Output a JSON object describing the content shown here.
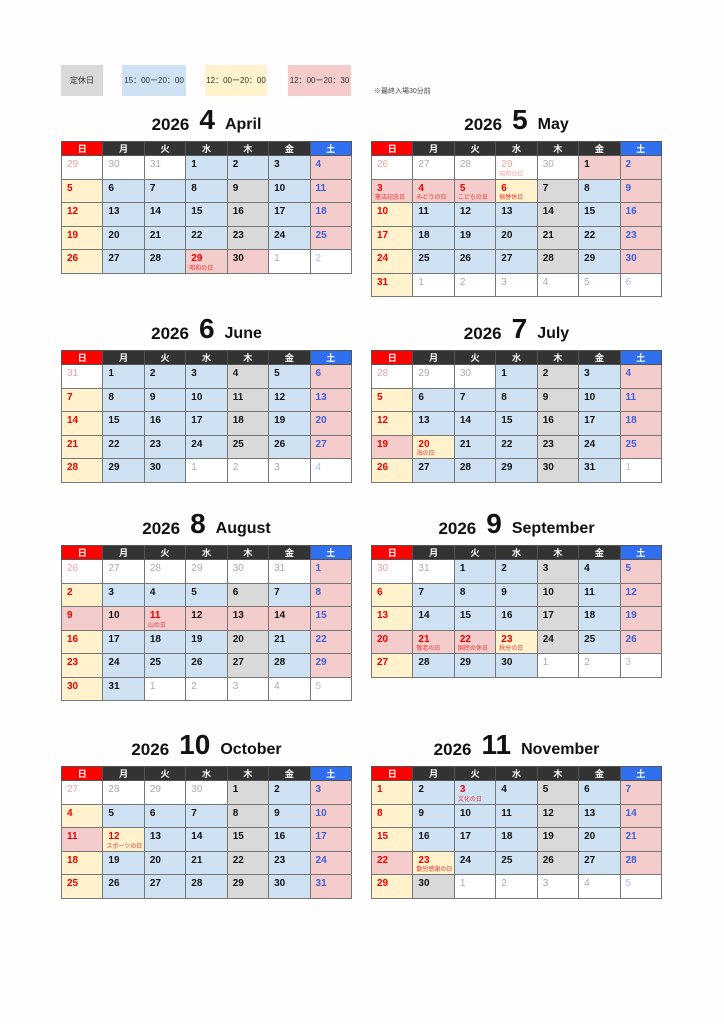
{
  "legend": [
    {
      "label": "定休日",
      "color": "#d9d9d9"
    },
    {
      "label": "15：00ー20：00",
      "color": "#cfe2f3"
    },
    {
      "label": "12：00ー20：00",
      "color": "#fff2cc"
    },
    {
      "label": "12：00ー20：30",
      "color": "#f4cccc"
    }
  ],
  "note": "※最終入場30分前",
  "schedule_codes": {
    "K": "定休日",
    "B": "15：00ー20：00",
    "Y": "12：00ー20：00",
    "P": "12：00ー20：30",
    "W": "other month"
  },
  "weekdays": [
    "日",
    "月",
    "火",
    "水",
    "木",
    "金",
    "土"
  ],
  "months": [
    {
      "year": "2026",
      "num": "4",
      "name": "April",
      "weeks": [
        {
          "days": [
            29,
            30,
            31,
            1,
            2,
            3,
            4
          ],
          "sched": "WWWBBBP"
        },
        {
          "days": [
            5,
            6,
            7,
            8,
            9,
            10,
            11
          ],
          "sched": "YBBBKBP"
        },
        {
          "days": [
            12,
            13,
            14,
            15,
            16,
            17,
            18
          ],
          "sched": "YBBBKBP"
        },
        {
          "days": [
            19,
            20,
            21,
            22,
            23,
            24,
            25
          ],
          "sched": "YBBBKBP"
        },
        {
          "days": [
            26,
            27,
            28,
            29,
            30,
            1,
            2
          ],
          "sched": "YBBPPWW",
          "holidays": {
            "3": "昭和の日"
          }
        }
      ]
    },
    {
      "year": "2026",
      "num": "5",
      "name": "May",
      "weeks": [
        {
          "days": [
            26,
            27,
            28,
            29,
            30,
            1,
            2
          ],
          "sched": "WWWWWPP",
          "holidays": {
            "3": "昭和の日"
          }
        },
        {
          "days": [
            3,
            4,
            5,
            6,
            7,
            8,
            9
          ],
          "sched": "PPPYKBP",
          "holidays": {
            "0": "憲法記念日",
            "1": "みどりの日",
            "2": "こどもの日",
            "3": "振替休日"
          }
        },
        {
          "days": [
            10,
            11,
            12,
            13,
            14,
            15,
            16
          ],
          "sched": "YBBBKBP"
        },
        {
          "days": [
            17,
            18,
            19,
            20,
            21,
            22,
            23
          ],
          "sched": "YBBBKBP"
        },
        {
          "days": [
            24,
            25,
            26,
            27,
            28,
            29,
            30
          ],
          "sched": "YBBBKBP"
        },
        {
          "days": [
            31,
            1,
            2,
            3,
            4,
            5,
            6
          ],
          "sched": "YWWWWWW"
        }
      ]
    },
    {
      "year": "2026",
      "num": "6",
      "name": "June",
      "weeks": [
        {
          "days": [
            31,
            1,
            2,
            3,
            4,
            5,
            6
          ],
          "sched": "WBBBKBP"
        },
        {
          "days": [
            7,
            8,
            9,
            10,
            11,
            12,
            13
          ],
          "sched": "YBBBKBP"
        },
        {
          "days": [
            14,
            15,
            16,
            17,
            18,
            19,
            20
          ],
          "sched": "YBBBKBP"
        },
        {
          "days": [
            21,
            22,
            23,
            24,
            25,
            26,
            27
          ],
          "sched": "YBBBKBP"
        },
        {
          "days": [
            28,
            29,
            30,
            1,
            2,
            3,
            4
          ],
          "sched": "YBBWWWW"
        }
      ]
    },
    {
      "year": "2026",
      "num": "7",
      "name": "July",
      "weeks": [
        {
          "days": [
            28,
            29,
            30,
            1,
            2,
            3,
            4
          ],
          "sched": "WWWBKBP"
        },
        {
          "days": [
            5,
            6,
            7,
            8,
            9,
            10,
            11
          ],
          "sched": "YBBBKBP"
        },
        {
          "days": [
            12,
            13,
            14,
            15,
            16,
            17,
            18
          ],
          "sched": "YBBBKBP"
        },
        {
          "days": [
            19,
            20,
            21,
            22,
            23,
            24,
            25
          ],
          "sched": "PYBBKBP",
          "holidays": {
            "1": "海の日"
          }
        },
        {
          "days": [
            26,
            27,
            28,
            29,
            30,
            31,
            1
          ],
          "sched": "YBBBKBW"
        }
      ]
    },
    {
      "year": "2026",
      "num": "8",
      "name": "August",
      "weeks": [
        {
          "days": [
            26,
            27,
            28,
            29,
            30,
            31,
            1
          ],
          "sched": "WWWWWWP"
        },
        {
          "days": [
            2,
            3,
            4,
            5,
            6,
            7,
            8
          ],
          "sched": "YBBBKBP"
        },
        {
          "days": [
            9,
            10,
            11,
            12,
            13,
            14,
            15
          ],
          "sched": "PPPPPPP",
          "holidays": {
            "2": "山の日"
          }
        },
        {
          "days": [
            16,
            17,
            18,
            19,
            20,
            21,
            22
          ],
          "sched": "YBBBKBP"
        },
        {
          "days": [
            23,
            24,
            25,
            26,
            27,
            28,
            29
          ],
          "sched": "YBBBKBP"
        },
        {
          "days": [
            30,
            31,
            1,
            2,
            3,
            4,
            5
          ],
          "sched": "YBWWWWW"
        }
      ]
    },
    {
      "year": "2026",
      "num": "9",
      "name": "September",
      "weeks": [
        {
          "days": [
            30,
            31,
            1,
            2,
            3,
            4,
            5
          ],
          "sched": "WWBBKBP"
        },
        {
          "days": [
            6,
            7,
            8,
            9,
            10,
            11,
            12
          ],
          "sched": "YBBBKBP"
        },
        {
          "days": [
            13,
            14,
            15,
            16,
            17,
            18,
            19
          ],
          "sched": "YBBBKBP"
        },
        {
          "days": [
            20,
            21,
            22,
            23,
            24,
            25,
            26
          ],
          "sched": "PPPYKBP",
          "holidays": {
            "1": "敬老の日",
            "2": "国民の休日",
            "3": "秋分の日"
          }
        },
        {
          "days": [
            27,
            28,
            29,
            30,
            1,
            2,
            3
          ],
          "sched": "YBBBWWW"
        }
      ]
    },
    {
      "year": "2026",
      "num": "10",
      "name": "October",
      "weeks": [
        {
          "days": [
            27,
            28,
            29,
            30,
            1,
            2,
            3
          ],
          "sched": "WWWWKBP"
        },
        {
          "days": [
            4,
            5,
            6,
            7,
            8,
            9,
            10
          ],
          "sched": "YBBBKBP"
        },
        {
          "days": [
            11,
            12,
            13,
            14,
            15,
            16,
            17
          ],
          "sched": "PYBBKBP",
          "holidays": {
            "1": "スポーツの日"
          }
        },
        {
          "days": [
            18,
            19,
            20,
            21,
            22,
            23,
            24
          ],
          "sched": "YBBBKBP"
        },
        {
          "days": [
            25,
            26,
            27,
            28,
            29,
            30,
            31
          ],
          "sched": "YBBBKBP"
        }
      ]
    },
    {
      "year": "2026",
      "num": "11",
      "name": "November",
      "weeks": [
        {
          "days": [
            1,
            2,
            3,
            4,
            5,
            6,
            7
          ],
          "sched": "YBBBKBP",
          "holidays": {
            "2": "文化の日"
          }
        },
        {
          "days": [
            8,
            9,
            10,
            11,
            12,
            13,
            14
          ],
          "sched": "YBBBKBP"
        },
        {
          "days": [
            15,
            16,
            17,
            18,
            19,
            20,
            21
          ],
          "sched": "YBBBKBP"
        },
        {
          "days": [
            22,
            23,
            24,
            25,
            26,
            27,
            28
          ],
          "sched": "PYBBKBP",
          "holidays": {
            "1": "勤労感謝の日"
          }
        },
        {
          "days": [
            29,
            30,
            1,
            2,
            3,
            4,
            5
          ],
          "sched": "YKWWWWW"
        }
      ]
    }
  ]
}
